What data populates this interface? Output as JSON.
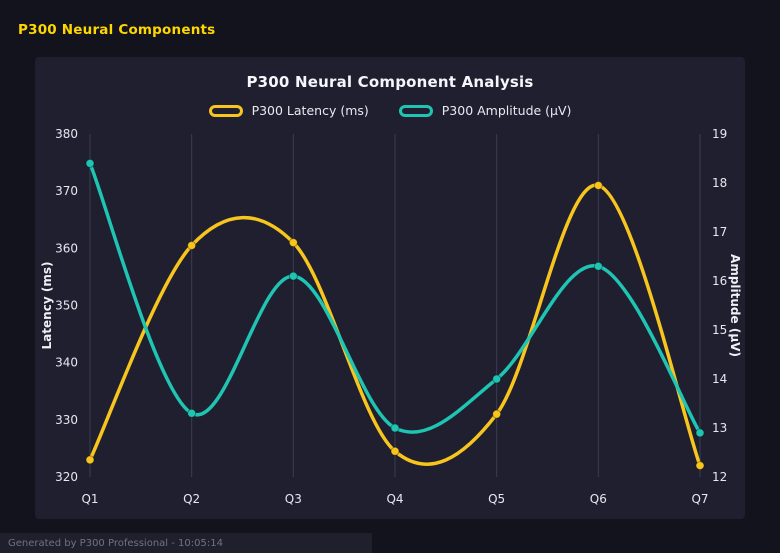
{
  "page": {
    "title": "P300 Neural Components",
    "footer": "Generated by P300 Professional - 10:05:14"
  },
  "chart_data": {
    "type": "line",
    "title": "P300 Neural Component Analysis",
    "categories": [
      "Q1",
      "Q2",
      "Q3",
      "Q4",
      "Q5",
      "Q6",
      "Q7"
    ],
    "series": [
      {
        "name": "P300 Latency (ms)",
        "axis": "left",
        "color": "#f7c51e",
        "values": [
          323,
          360.5,
          361,
          324.5,
          331,
          371,
          322
        ]
      },
      {
        "name": "P300 Amplitude (μV)",
        "axis": "right",
        "color": "#1fc4b2",
        "values": [
          18.4,
          13.3,
          16.1,
          13.0,
          14.0,
          16.3,
          12.9
        ]
      }
    ],
    "left_axis": {
      "label": "Latency (ms)",
      "min": 320,
      "max": 380,
      "tick_step": 10
    },
    "right_axis": {
      "label": "Amplitude (μV)",
      "min": 12,
      "max": 19,
      "tick_step": 1
    },
    "grid": "vertical",
    "legend_position": "top",
    "colors": {
      "background": "#1f1f30",
      "page_background": "#13131d",
      "title": "#ffd700"
    }
  }
}
